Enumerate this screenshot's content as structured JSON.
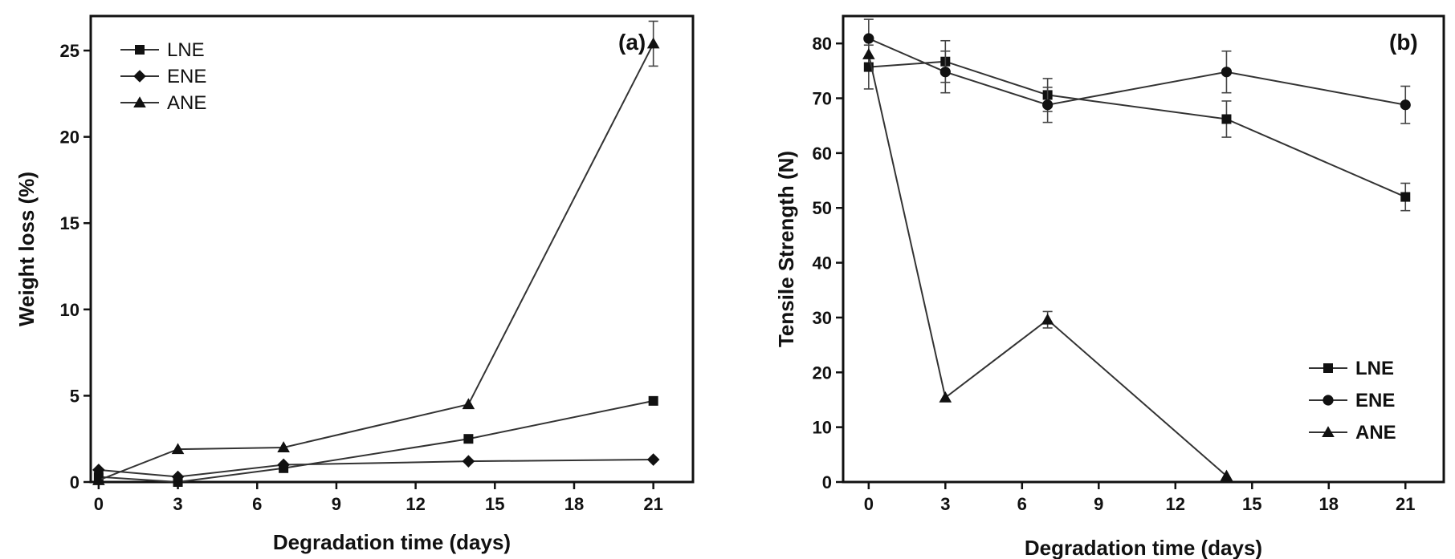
{
  "chart_data": [
    {
      "type": "line",
      "panel_label": "(a)",
      "xlabel": "Degradation time (days)",
      "ylabel": "Weight loss (%)",
      "xlim": [
        -0.3,
        22.5
      ],
      "ylim": [
        0,
        27
      ],
      "xticks": [
        0,
        3,
        6,
        9,
        12,
        15,
        18,
        21
      ],
      "yticks": [
        0,
        5,
        10,
        15,
        20,
        25
      ],
      "legend_position": "top-left",
      "grid": false,
      "series": [
        {
          "name": "LNE",
          "marker": "square",
          "x": [
            0,
            3,
            7,
            14,
            21
          ],
          "y": [
            0.3,
            0.0,
            0.8,
            2.5,
            4.7
          ]
        },
        {
          "name": "ENE",
          "marker": "diamond",
          "x": [
            0,
            3,
            7,
            14,
            21
          ],
          "y": [
            0.7,
            0.3,
            1.0,
            1.2,
            1.3
          ]
        },
        {
          "name": "ANE",
          "marker": "triangle",
          "x": [
            0,
            3,
            7,
            14,
            21
          ],
          "y": [
            0.1,
            1.9,
            2.0,
            4.5,
            25.4
          ],
          "err": [
            0,
            0,
            0,
            0,
            1.3
          ]
        }
      ]
    },
    {
      "type": "line",
      "panel_label": "(b)",
      "xlabel": "Degradation time (days)",
      "ylabel": "Tensile Strength (N)",
      "xlim": [
        -1,
        22.5
      ],
      "ylim": [
        0,
        85
      ],
      "xticks": [
        0,
        3,
        6,
        9,
        12,
        15,
        18,
        21
      ],
      "yticks": [
        0,
        10,
        20,
        30,
        40,
        50,
        60,
        70,
        80
      ],
      "legend_position": "bottom-right",
      "grid": false,
      "series": [
        {
          "name": "LNE",
          "marker": "square",
          "x": [
            0,
            3,
            7,
            14,
            21
          ],
          "y": [
            75.7,
            76.7,
            70.6,
            66.2,
            52.0
          ],
          "err": [
            4.0,
            3.8,
            3.0,
            3.3,
            2.5
          ]
        },
        {
          "name": "ENE",
          "marker": "circle",
          "x": [
            0,
            3,
            7,
            14,
            21
          ],
          "y": [
            80.9,
            74.8,
            68.8,
            74.8,
            68.8
          ],
          "err": [
            3.5,
            3.8,
            3.2,
            3.8,
            3.4
          ]
        },
        {
          "name": "ANE",
          "marker": "triangle",
          "x": [
            0,
            3,
            7,
            14
          ],
          "y": [
            78.0,
            15.4,
            29.6,
            1.1
          ],
          "err": [
            0,
            0,
            1.5,
            0
          ]
        }
      ]
    }
  ]
}
